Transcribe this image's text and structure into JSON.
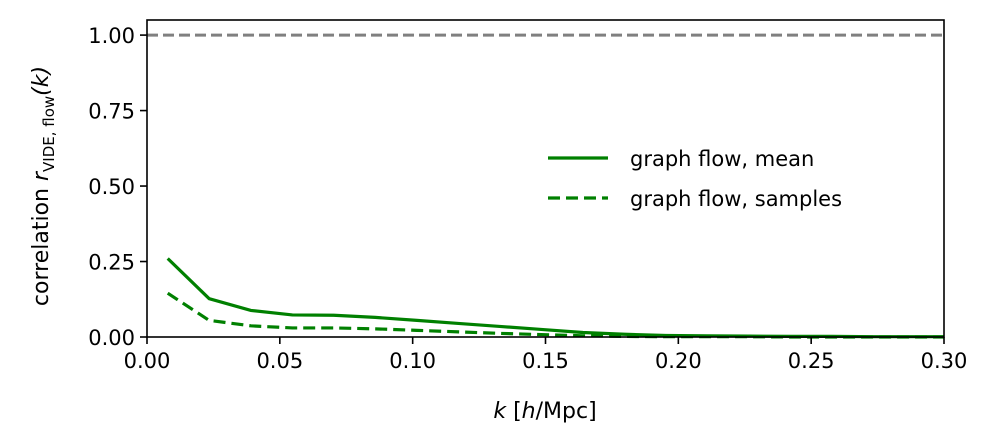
{
  "chart_data": {
    "type": "line",
    "xlabel_parts": {
      "k": "k",
      "rest": " [",
      "h": "h",
      "unit": "/Mpc]"
    },
    "ylabel_parts": {
      "main": "correlation ",
      "r": "r",
      "sub": "VIDE, flow",
      "arg": "(k)"
    },
    "xlim": [
      0,
      0.3
    ],
    "ylim": [
      0,
      1.05
    ],
    "xticks": [
      "0.00",
      "0.05",
      "0.10",
      "0.15",
      "0.20",
      "0.25",
      "0.30"
    ],
    "yticks": [
      "0.00",
      "0.25",
      "0.50",
      "0.75",
      "1.00"
    ],
    "reference_line": {
      "y": 1.0,
      "color": "#808080",
      "style": "dashed"
    },
    "legend_position": "center-right",
    "x": [
      0.0078,
      0.0234,
      0.0391,
      0.0547,
      0.0703,
      0.0859,
      0.1016,
      0.1172,
      0.1328,
      0.1484,
      0.1641,
      0.1797,
      0.1953,
      0.2109,
      0.2266,
      0.2422,
      0.2578,
      0.2734,
      0.2891,
      0.3
    ],
    "series": [
      {
        "name": "graph flow, mean",
        "color": "#008000",
        "style": "solid",
        "values": [
          0.26,
          0.127,
          0.088,
          0.073,
          0.072,
          0.065,
          0.055,
          0.045,
          0.035,
          0.025,
          0.015,
          0.009,
          0.005,
          0.004,
          0.003,
          0.002,
          0.002,
          0.001,
          0.001,
          0.001
        ]
      },
      {
        "name": "graph flow, samples",
        "color": "#008000",
        "style": "dashed",
        "values": [
          0.145,
          0.055,
          0.037,
          0.03,
          0.03,
          0.027,
          0.022,
          0.017,
          0.012,
          0.008,
          0.004,
          0.002,
          0.001,
          0.001,
          0.001,
          0.0,
          0.0,
          0.0,
          0.0,
          0.0
        ]
      }
    ]
  }
}
